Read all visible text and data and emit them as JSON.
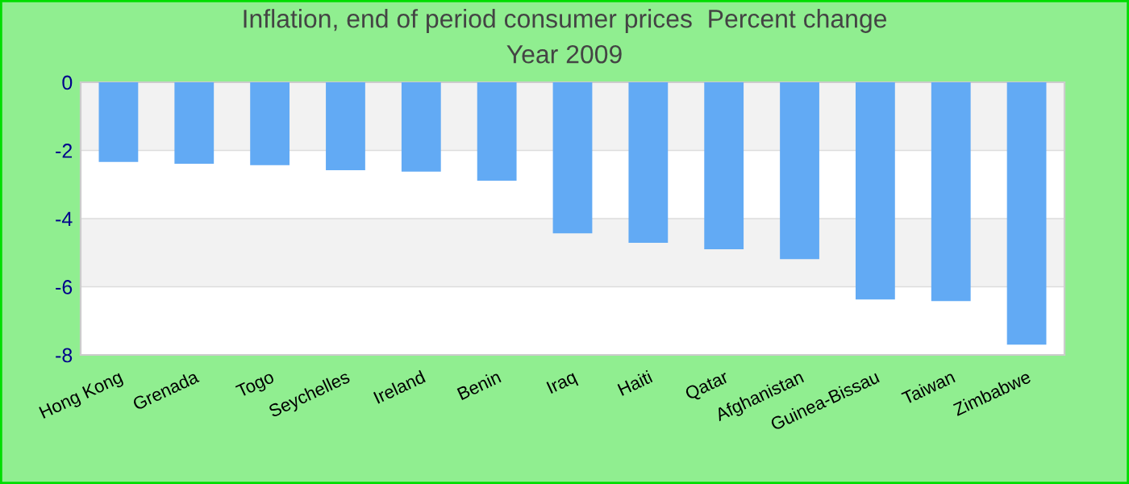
{
  "chart_data": {
    "type": "bar",
    "title": "Inflation, end of period consumer prices  Percent change",
    "subtitle": "Year 2009",
    "categories": [
      "Hong Kong",
      "Grenada",
      "Togo",
      "Seychelles",
      "Ireland",
      "Benin",
      "Iraq",
      "Haiti",
      "Qatar",
      "Afghanistan",
      "Guinea-Bissau",
      "Taiwan",
      "Zimbabwe"
    ],
    "values": [
      -2.34,
      -2.39,
      -2.43,
      -2.58,
      -2.62,
      -2.89,
      -4.43,
      -4.71,
      -4.9,
      -5.19,
      -6.37,
      -6.42,
      -7.7
    ],
    "color": "#62aaf4",
    "ylim": [
      -8,
      0
    ],
    "yticks": [
      -8,
      -6,
      -4,
      -2,
      0
    ],
    "grid": "y",
    "legend": false
  }
}
